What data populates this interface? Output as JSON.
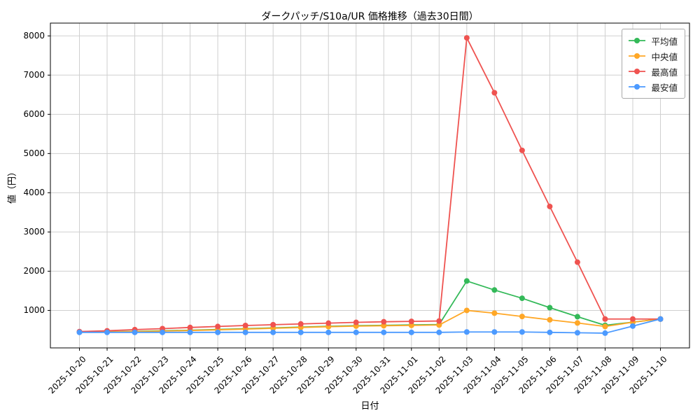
{
  "chart_data": {
    "type": "line",
    "title": "ダークパッチ/S10a/UR 価格推移（過去30日間）",
    "xlabel": "日付",
    "ylabel": "値（円）",
    "grid": true,
    "legend_position": "upper right",
    "marker": "circle",
    "x": [
      "2025-10-20",
      "2025-10-21",
      "2025-10-22",
      "2025-10-23",
      "2025-10-24",
      "2025-10-25",
      "2025-10-26",
      "2025-10-27",
      "2025-10-28",
      "2025-10-29",
      "2025-10-30",
      "2025-10-31",
      "2025-11-01",
      "2025-11-02",
      "2025-11-03",
      "2025-11-04",
      "2025-11-05",
      "2025-11-06",
      "2025-11-07",
      "2025-11-08",
      "2025-11-09",
      "2025-11-10"
    ],
    "ylim": [
      44,
      8326
    ],
    "yticks": [
      1000,
      2000,
      3000,
      4000,
      5000,
      6000,
      7000,
      8000
    ],
    "series": [
      {
        "name": "平均値",
        "color": "#33b958",
        "values": [
          450,
          455,
          465,
          480,
          495,
          515,
          535,
          555,
          575,
          595,
          610,
          620,
          630,
          640,
          1750,
          1520,
          1310,
          1070,
          840,
          620,
          700,
          780
        ]
      },
      {
        "name": "中央値",
        "color": "#ffa726",
        "values": [
          450,
          452,
          460,
          472,
          487,
          505,
          525,
          545,
          565,
          585,
          600,
          610,
          618,
          628,
          1000,
          930,
          845,
          760,
          680,
          590,
          700,
          780
        ]
      },
      {
        "name": "最高値",
        "color": "#ef5350",
        "values": [
          460,
          480,
          510,
          535,
          565,
          590,
          615,
          635,
          655,
          675,
          695,
          710,
          720,
          730,
          7950,
          6550,
          5080,
          3650,
          2230,
          780,
          780,
          780
        ]
      },
      {
        "name": "最安値",
        "color": "#4c9aff",
        "values": [
          440,
          440,
          440,
          440,
          440,
          440,
          440,
          440,
          440,
          440,
          440,
          440,
          440,
          440,
          450,
          450,
          450,
          440,
          430,
          420,
          600,
          780
        ]
      }
    ]
  }
}
